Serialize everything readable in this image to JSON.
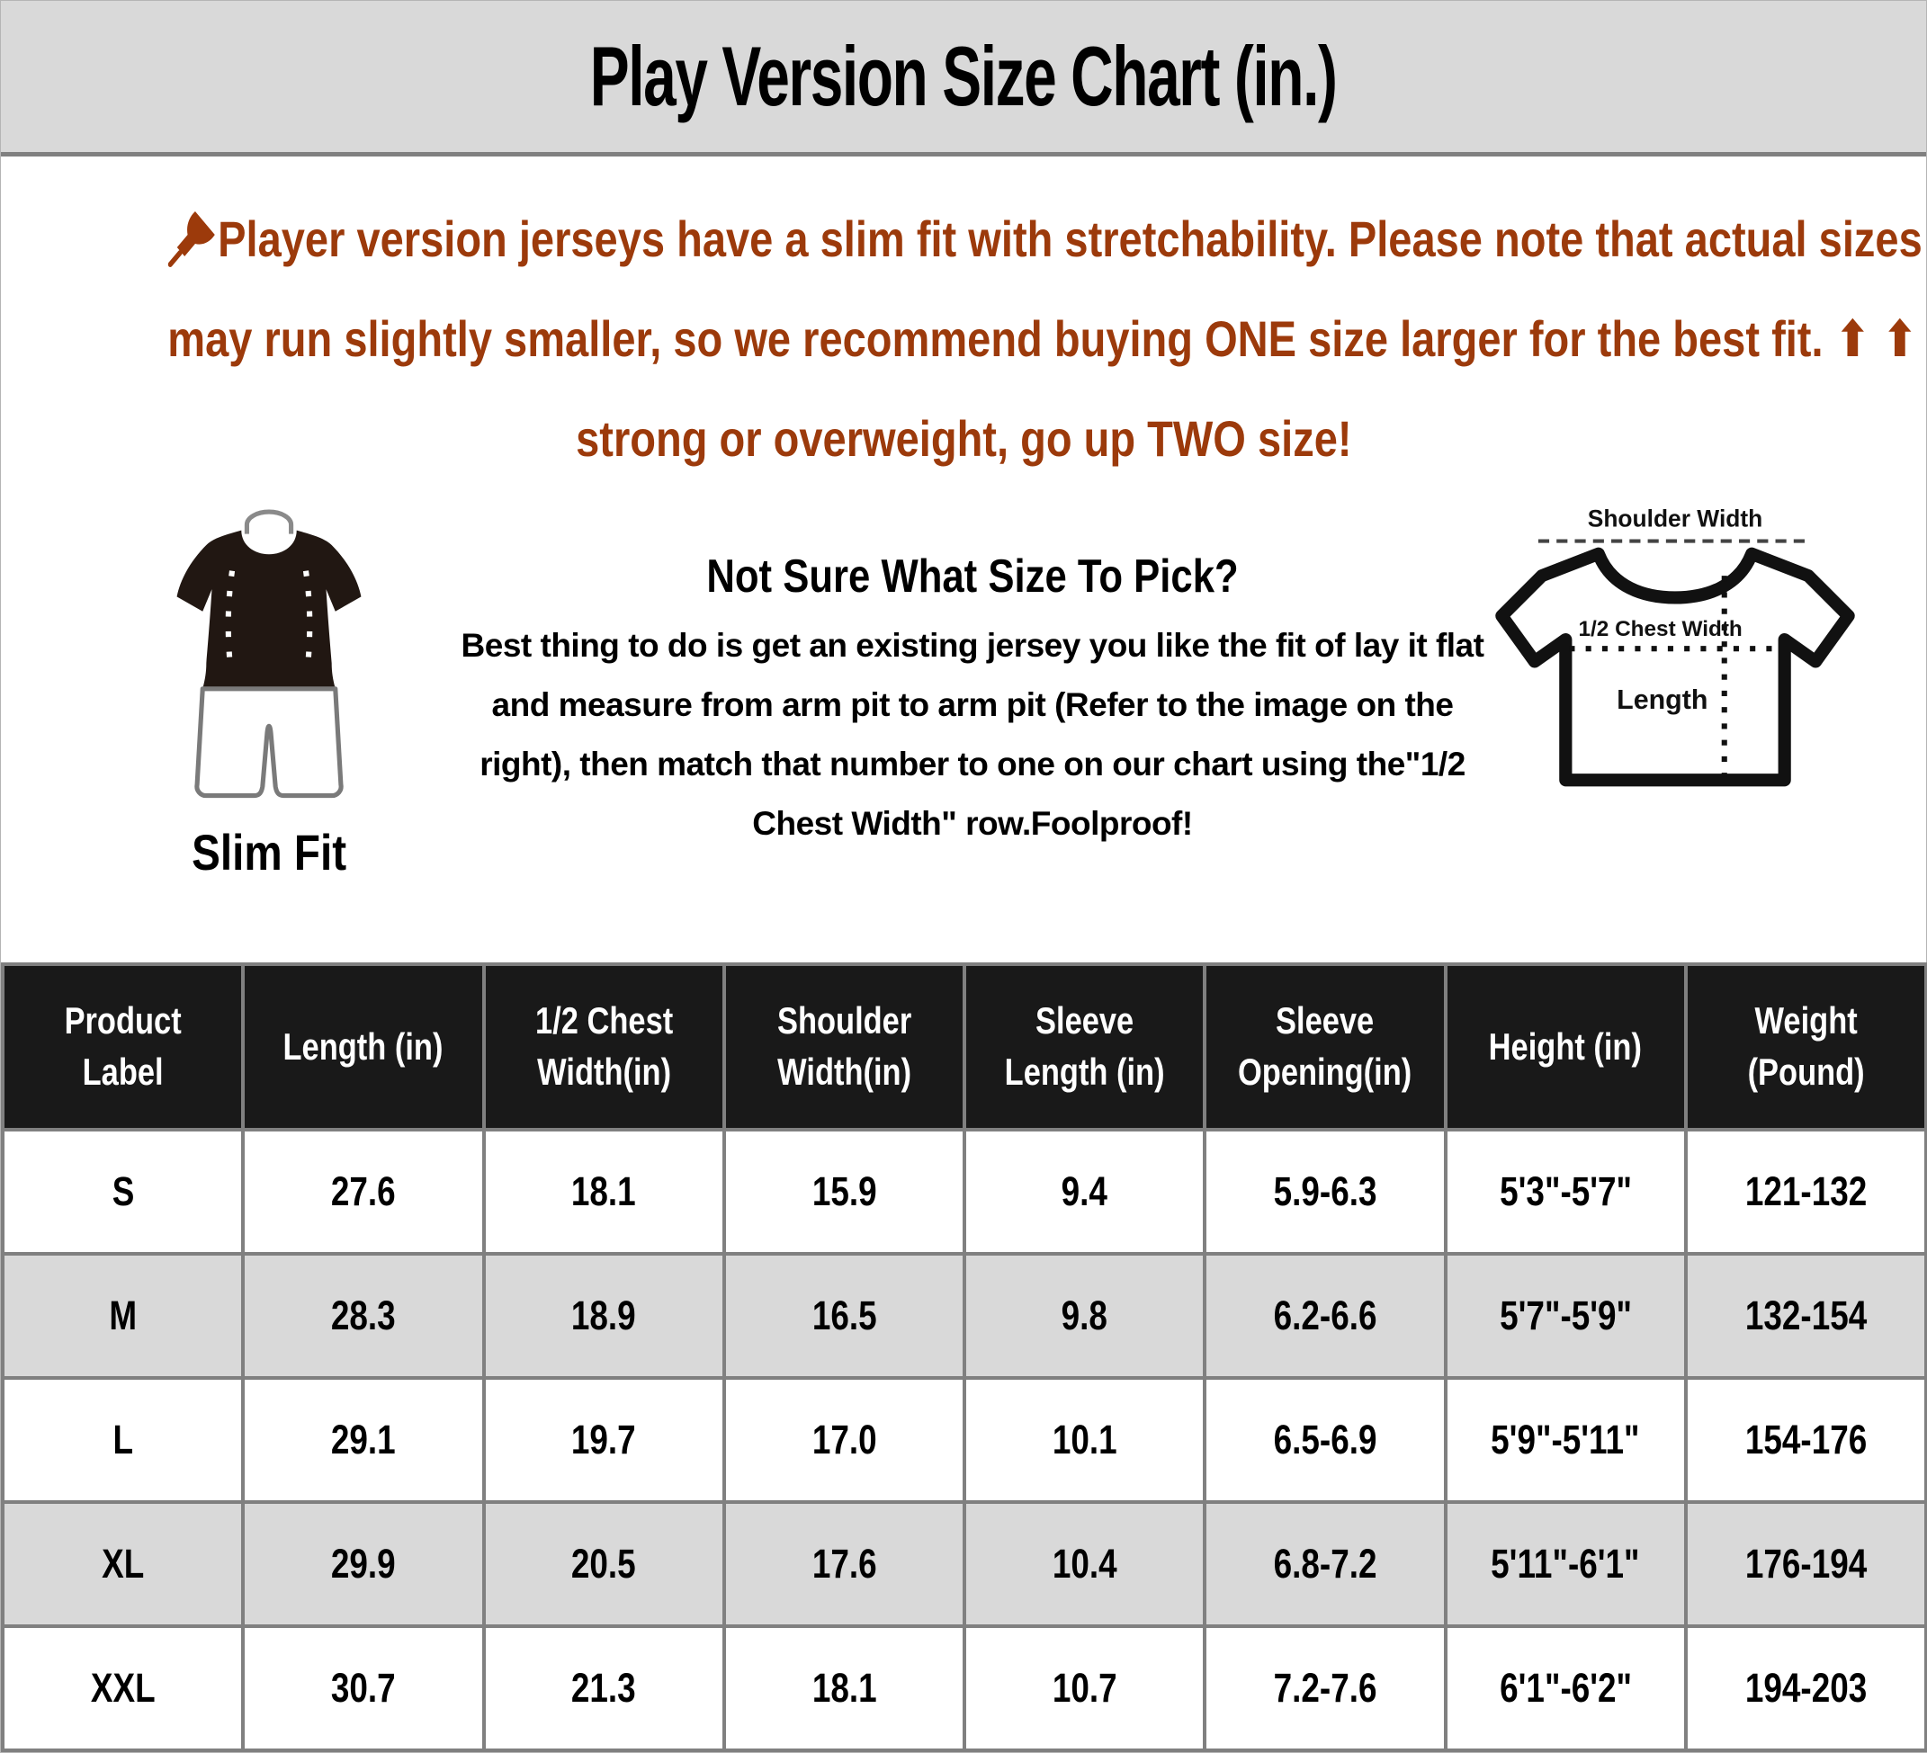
{
  "page_title": "Play Version Size Chart (in.)",
  "note": {
    "line1": "Player version jerseys have a slim fit with stretchability. Please note that actual sizes",
    "line2": "may run slightly smaller, so we recommend buying ONE size larger for the best fit. ⬆ ⬆",
    "line3": "strong or overweight, go up TWO size!"
  },
  "fit_icon": {
    "label": "Slim Fit"
  },
  "guide": {
    "heading": "Not Sure What Size To Pick?",
    "body": "Best thing to do is get an existing jersey you like the fit of lay it flat and measure from arm pit to arm pit (Refer to the image on the right), then match that number to one on our chart using the\"1/2 Chest Width\" row.Foolproof!"
  },
  "diagram": {
    "shoulder_width_label": "Shoulder Width",
    "half_chest_width_label": "1/2 Chest Width",
    "length_label": "Length"
  },
  "size_table": {
    "headers": [
      "Product Label",
      "Length (in)",
      "1/2 Chest Width(in)",
      "Shoulder Width(in)",
      "Sleeve Length (in)",
      "Sleeve Opening(in)",
      "Height (in)",
      "Weight (Pound)"
    ],
    "rows": [
      [
        "S",
        "27.6",
        "18.1",
        "15.9",
        "9.4",
        "5.9-6.3",
        "5'3\"-5'7\"",
        "121-132"
      ],
      [
        "M",
        "28.3",
        "18.9",
        "16.5",
        "9.8",
        "6.2-6.6",
        "5'7\"-5'9\"",
        "132-154"
      ],
      [
        "L",
        "29.1",
        "19.7",
        "17.0",
        "10.1",
        "6.5-6.9",
        "5'9\"-5'11\"",
        "154-176"
      ],
      [
        "XL",
        "29.9",
        "20.5",
        "17.6",
        "10.4",
        "6.8-7.2",
        "5'11\"-6'1\"",
        "176-194"
      ],
      [
        "XXL",
        "30.7",
        "21.3",
        "18.1",
        "10.7",
        "7.2-7.6",
        "6'1\"-6'2\"",
        "194-203"
      ]
    ]
  },
  "icons": {
    "note_pin": "pushpin-icon",
    "slim_fit_figure": "slim-fit-figure-icon",
    "measure_diagram": "tshirt-measurement-diagram-icon"
  },
  "colors": {
    "accent_text": "#9c3a0b",
    "title_band_bg": "#d9d9d9",
    "title_band_divider": "#808080",
    "table_header_bg": "#191919",
    "table_row_alt_bg": "#d9d9d9",
    "grid_line": "#808080"
  }
}
